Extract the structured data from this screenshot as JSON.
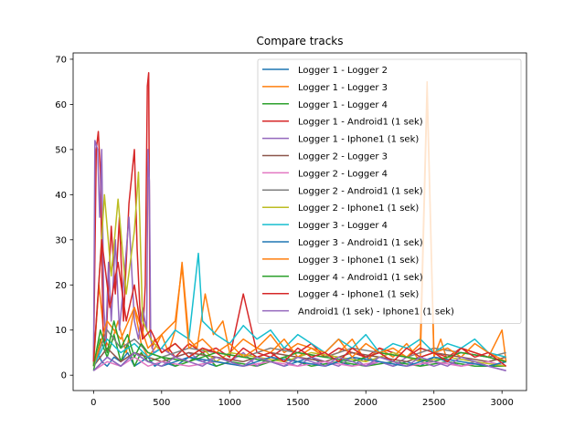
{
  "chart_data": {
    "type": "line",
    "title": "Compare tracks",
    "xlabel": "",
    "ylabel": "",
    "xlim": [
      -150,
      3180
    ],
    "ylim": [
      -3.4,
      71.4
    ],
    "xticks": [
      0,
      500,
      1000,
      1500,
      2000,
      2500,
      3000
    ],
    "yticks": [
      0,
      10,
      20,
      30,
      40,
      50,
      60,
      70
    ],
    "grid": false,
    "legend_position": "upper right",
    "series": [
      {
        "name": "Logger 1 - Logger 2",
        "color": "#1f77b4",
        "x": [
          0,
          30,
          60,
          100,
          150,
          200,
          250,
          300,
          350,
          400,
          450,
          500,
          600,
          700,
          800,
          900,
          1000,
          1100,
          1200,
          1300,
          1400,
          1500,
          1600,
          1700,
          1800,
          1900,
          2000,
          2100,
          2200,
          2300,
          2400,
          2500,
          2600,
          2700,
          2800,
          2900,
          3030
        ],
        "y": [
          2,
          5,
          3,
          2,
          4,
          3,
          5,
          2,
          3,
          4,
          2,
          3,
          2,
          4,
          3,
          2,
          3,
          2,
          4,
          3,
          2,
          3,
          4,
          2,
          3,
          2,
          4,
          3,
          2,
          3,
          2,
          4,
          3,
          2,
          3,
          2,
          3
        ]
      },
      {
        "name": "Logger 1 - Logger 3",
        "color": "#ff7f0e",
        "x": [
          0,
          40,
          80,
          120,
          180,
          240,
          300,
          350,
          400,
          450,
          500,
          550,
          600,
          650,
          700,
          760,
          820,
          880,
          950,
          1000,
          1100,
          1200,
          1300,
          1400,
          1500,
          1600,
          1700,
          1800,
          1900,
          2000,
          2100,
          2200,
          2300,
          2400,
          2450,
          2500,
          2550,
          2600,
          2700,
          2800,
          2900,
          3000,
          3030
        ],
        "y": [
          3,
          20,
          8,
          6,
          12,
          5,
          15,
          7,
          4,
          6,
          9,
          5,
          10,
          25,
          8,
          6,
          18,
          9,
          12,
          5,
          8,
          6,
          9,
          5,
          7,
          6,
          4,
          5,
          8,
          3,
          6,
          4,
          7,
          3,
          62,
          4,
          8,
          3,
          6,
          5,
          4,
          10,
          3
        ]
      },
      {
        "name": "Logger 1 - Logger 4",
        "color": "#2ca02c",
        "x": [
          0,
          50,
          100,
          150,
          200,
          250,
          300,
          350,
          400,
          500,
          600,
          700,
          800,
          900,
          1000,
          1200,
          1400,
          1600,
          1800,
          2000,
          2200,
          2400,
          2600,
          2800,
          3030
        ],
        "y": [
          1,
          8,
          4,
          9,
          3,
          7,
          2,
          5,
          3,
          4,
          2,
          3,
          5,
          2,
          3,
          2,
          4,
          2,
          3,
          2,
          3,
          2,
          3,
          2,
          2
        ]
      },
      {
        "name": "Logger 1 - Android1 (1 sek)",
        "color": "#d62728",
        "x": [
          0,
          20,
          35,
          50,
          70,
          90,
          110,
          130,
          160,
          190,
          220,
          260,
          300,
          320,
          340,
          360,
          380,
          395,
          405,
          415,
          430,
          450,
          500,
          550,
          600,
          700,
          800,
          900,
          1000,
          1100,
          1200,
          1300,
          1400,
          1500,
          1600,
          1700,
          1800,
          1900,
          2000,
          2100,
          2200,
          2300,
          2400,
          2500,
          2600,
          2700,
          2800,
          2900,
          3030
        ],
        "y": [
          3,
          50,
          54,
          45,
          10,
          6,
          20,
          33,
          18,
          35,
          12,
          38,
          50,
          28,
          15,
          8,
          20,
          64,
          67,
          10,
          6,
          8,
          5,
          6,
          4,
          7,
          5,
          6,
          4,
          18,
          5,
          4,
          6,
          5,
          7,
          4,
          6,
          5,
          4,
          6,
          5,
          4,
          6,
          5,
          4,
          6,
          5,
          4,
          3
        ]
      },
      {
        "name": "Logger 1 - Iphone1 (1 sek)",
        "color": "#9467bd",
        "x": [
          0,
          10,
          30,
          45,
          60,
          75,
          90,
          110,
          130,
          160,
          190,
          220,
          260,
          300,
          330,
          360,
          390,
          400,
          410,
          420,
          440,
          500,
          600,
          700,
          800,
          900,
          1000,
          1100,
          1200,
          1300,
          1400,
          1500,
          1600,
          1700,
          1800,
          1900,
          2000,
          2100,
          2200,
          2300,
          2400,
          2500,
          2600,
          2700,
          2800,
          2900,
          3030
        ],
        "y": [
          2,
          52,
          50,
          35,
          50,
          15,
          8,
          25,
          12,
          30,
          10,
          20,
          35,
          12,
          8,
          15,
          10,
          50,
          43,
          8,
          5,
          6,
          4,
          5,
          3,
          4,
          3,
          5,
          2,
          4,
          3,
          2,
          4,
          3,
          2,
          4,
          2,
          3,
          2,
          4,
          3,
          2,
          3,
          2,
          3,
          2,
          1
        ]
      },
      {
        "name": "Logger 2 - Logger 3",
        "color": "#8c564b",
        "x": [
          0,
          100,
          200,
          300,
          400,
          500,
          700,
          900,
          1100,
          1300,
          1500,
          1700,
          1900,
          2100,
          2300,
          2500,
          2700,
          2900,
          3030
        ],
        "y": [
          2,
          6,
          3,
          5,
          4,
          3,
          5,
          4,
          3,
          5,
          4,
          3,
          5,
          4,
          3,
          5,
          4,
          3,
          4
        ]
      },
      {
        "name": "Logger 2 - Logger 4",
        "color": "#e377c2",
        "x": [
          0,
          100,
          200,
          300,
          400,
          500,
          700,
          900,
          1100,
          1300,
          1500,
          1700,
          1900,
          2100,
          2300,
          2500,
          2700,
          2900,
          3030
        ],
        "y": [
          1,
          3,
          2,
          4,
          2,
          3,
          2,
          3,
          2,
          3,
          2,
          3,
          2,
          3,
          2,
          3,
          2,
          3,
          2
        ]
      },
      {
        "name": "Logger 2 - Android1 (1 sek)",
        "color": "#7f7f7f",
        "x": [
          0,
          100,
          200,
          300,
          400,
          500,
          700,
          900,
          1100,
          1300,
          1500,
          1700,
          1900,
          2100,
          2300,
          2500,
          2700,
          2900,
          3030
        ],
        "y": [
          2,
          10,
          6,
          8,
          5,
          4,
          6,
          5,
          4,
          6,
          5,
          4,
          6,
          5,
          4,
          6,
          5,
          4,
          5
        ]
      },
      {
        "name": "Logger 2 - Iphone1 (1 sek)",
        "color": "#bcbd22",
        "x": [
          0,
          80,
          130,
          180,
          240,
          300,
          330,
          360,
          420,
          500,
          600,
          700,
          800,
          900,
          1000,
          1200,
          1400,
          1600,
          1800,
          2000,
          2200,
          2400,
          2600,
          2800,
          3030
        ],
        "y": [
          2,
          40,
          22,
          39,
          18,
          32,
          45,
          12,
          8,
          5,
          7,
          4,
          6,
          3,
          5,
          4,
          3,
          5,
          4,
          3,
          5,
          3,
          4,
          3,
          2
        ]
      },
      {
        "name": "Logger 3 - Logger 4",
        "color": "#17becf",
        "x": [
          0,
          100,
          200,
          300,
          400,
          500,
          600,
          700,
          770,
          800,
          900,
          1000,
          1100,
          1200,
          1300,
          1400,
          1500,
          1600,
          1700,
          1800,
          1900,
          2000,
          2100,
          2200,
          2300,
          2400,
          2500,
          2600,
          2700,
          2800,
          2900,
          3030
        ],
        "y": [
          2,
          8,
          5,
          7,
          4,
          6,
          10,
          8,
          27,
          12,
          9,
          7,
          11,
          8,
          10,
          6,
          9,
          7,
          5,
          8,
          6,
          9,
          5,
          7,
          6,
          8,
          5,
          7,
          6,
          8,
          5,
          4
        ]
      },
      {
        "name": "Logger 3 - Android1 (1 sek)",
        "color": "#1f77b4",
        "x": [
          0,
          100,
          200,
          300,
          400,
          500,
          700,
          900,
          1100,
          1300,
          1500,
          1700,
          1900,
          2100,
          2300,
          2500,
          2700,
          2900,
          3030
        ],
        "y": [
          1,
          4,
          2,
          5,
          3,
          2,
          4,
          3,
          2,
          4,
          3,
          2,
          4,
          3,
          2,
          4,
          3,
          2,
          3
        ]
      },
      {
        "name": "Logger 3 - Iphone1 (1 sek)",
        "color": "#ff7f0e",
        "x": [
          0,
          100,
          200,
          300,
          400,
          500,
          600,
          650,
          700,
          800,
          900,
          1000,
          1100,
          1200,
          1300,
          1400,
          1500,
          1600,
          1700,
          1800,
          1900,
          2000,
          2100,
          2200,
          2300,
          2400,
          2450,
          2500,
          2600,
          2700,
          2800,
          2900,
          3030
        ],
        "y": [
          2,
          12,
          8,
          15,
          6,
          9,
          12,
          24,
          6,
          8,
          5,
          7,
          4,
          6,
          5,
          8,
          4,
          6,
          5,
          8,
          4,
          7,
          5,
          6,
          4,
          7,
          65,
          5,
          6,
          4,
          7,
          5,
          3
        ]
      },
      {
        "name": "Logger 4 - Android1 (1 sek)",
        "color": "#2ca02c",
        "x": [
          0,
          50,
          100,
          150,
          200,
          250,
          300,
          350,
          400,
          500,
          700,
          900,
          1100,
          1300,
          1500,
          1700,
          1900,
          2100,
          2300,
          2500,
          2700,
          2900,
          3030
        ],
        "y": [
          2,
          10,
          5,
          12,
          6,
          9,
          4,
          7,
          5,
          4,
          3,
          5,
          4,
          3,
          5,
          4,
          3,
          5,
          4,
          3,
          5,
          4,
          3
        ]
      },
      {
        "name": "Logger 4 - Iphone1 (1 sek)",
        "color": "#d62728",
        "x": [
          0,
          60,
          120,
          180,
          240,
          300,
          360,
          420,
          500,
          600,
          700,
          800,
          900,
          1000,
          1100,
          1200,
          1300,
          1400,
          1500,
          1600,
          1700,
          1800,
          1900,
          2000,
          2100,
          2200,
          2300,
          2400,
          2500,
          2600,
          2700,
          2800,
          2900,
          3030
        ],
        "y": [
          3,
          30,
          15,
          25,
          12,
          20,
          8,
          10,
          5,
          7,
          4,
          6,
          5,
          3,
          6,
          4,
          5,
          3,
          6,
          4,
          5,
          3,
          6,
          4,
          5,
          3,
          6,
          4,
          5,
          3,
          6,
          4,
          5,
          2
        ]
      },
      {
        "name": "Android1 (1 sek) - Iphone1 (1 sek)",
        "color": "#9467bd",
        "x": [
          0,
          100,
          200,
          300,
          400,
          500,
          600,
          700,
          800,
          900,
          1000,
          1100,
          1200,
          1300,
          1400,
          1500,
          1600,
          1700,
          1800,
          1900,
          2000,
          2100,
          2200,
          2300,
          2400,
          2500,
          2600,
          2700,
          2800,
          2900,
          3030
        ],
        "y": [
          1,
          4,
          2,
          5,
          3,
          2,
          4,
          3,
          2,
          4,
          3,
          2,
          4,
          3,
          2,
          4,
          3,
          2,
          4,
          3,
          2,
          4,
          3,
          2,
          4,
          3,
          2,
          4,
          3,
          2,
          1
        ]
      }
    ]
  }
}
